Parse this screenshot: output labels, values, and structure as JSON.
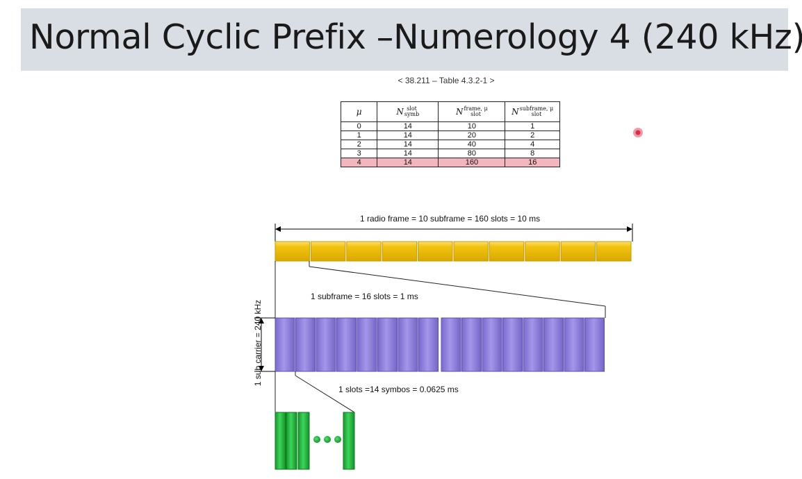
{
  "title": "Normal Cyclic Prefix –Numerology 4 (240 kHz)",
  "table_caption": "< 38.211 – Table 4.3.2-1 >",
  "table": {
    "headers": [
      {
        "base": "μ",
        "sup": "",
        "sub": ""
      },
      {
        "base": "N",
        "sup": "slot",
        "sub": "symb"
      },
      {
        "base": "N",
        "sup": "frame, μ",
        "sub": "slot"
      },
      {
        "base": "N",
        "sup": "subframe, μ",
        "sub": "slot"
      }
    ],
    "rows": [
      [
        "0",
        "14",
        "10",
        "1"
      ],
      [
        "1",
        "14",
        "20",
        "2"
      ],
      [
        "2",
        "14",
        "40",
        "4"
      ],
      [
        "3",
        "14",
        "80",
        "8"
      ],
      [
        "4",
        "14",
        "160",
        "16"
      ]
    ],
    "highlighted_row": 4
  },
  "diagram": {
    "radio_frame_label": "1 radio frame = 10 subframe = 160 slots = 10 ms",
    "subframe_label": "1 subframe = 16 slots = 1 ms",
    "slot_label": "1 slots =14 symbos = 0.0625 ms",
    "subcarrier_label": "1 sub carrier = 240 kHz",
    "subframe_count": 10,
    "slot_count": 16,
    "colors": {
      "subframe_fill": "#f2c40f",
      "slot_fill": "#8f7fdc",
      "symbol_fill": "#1fb83a",
      "highlight_row": "#f2b6bf"
    }
  }
}
